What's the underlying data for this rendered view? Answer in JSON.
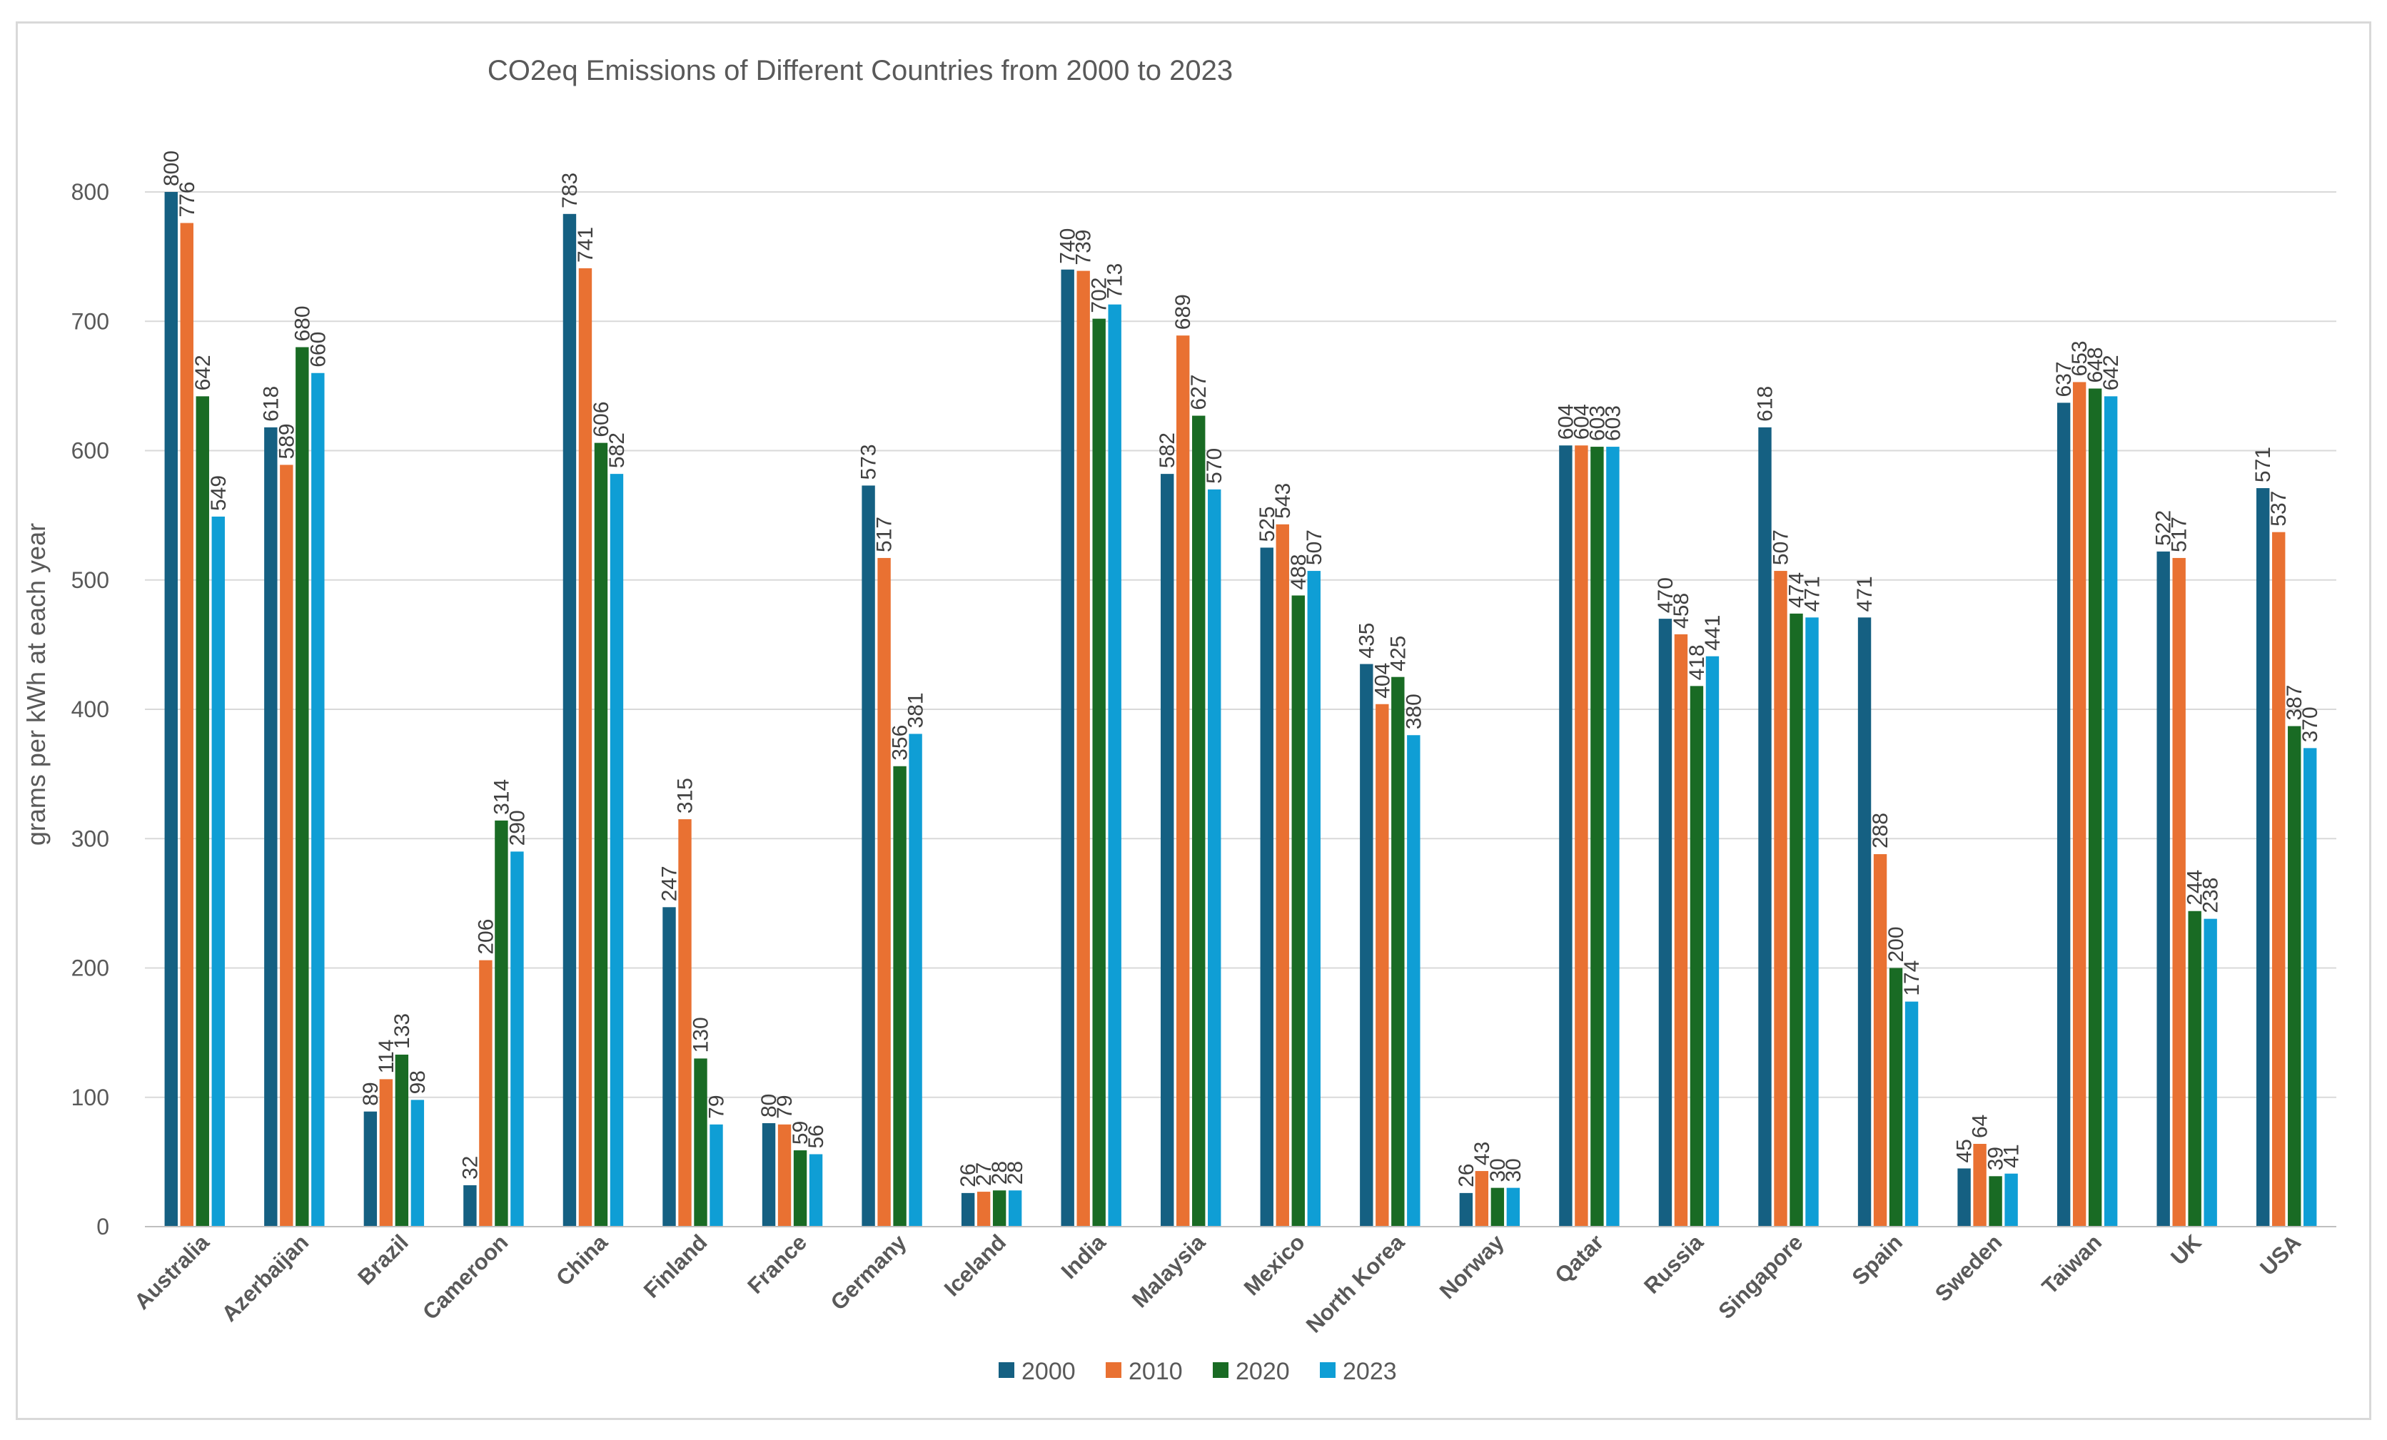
{
  "chart_data": {
    "type": "bar",
    "title": "CO2eq Emissions of Different Countries from 2000 to 2023",
    "xlabel": "",
    "ylabel": "grams per kWh at each year",
    "ylim": [
      0,
      800
    ],
    "yticks": [
      0,
      100,
      200,
      300,
      400,
      500,
      600,
      700,
      800
    ],
    "grid": true,
    "legend_position": "bottom",
    "categories": [
      "Australia",
      "Azerbaijan",
      "Brazil",
      "Cameroon",
      "China",
      "Finland",
      "France",
      "Germany",
      "Iceland",
      "India",
      "Malaysia",
      "Mexico",
      "North Korea",
      "Norway",
      "Qatar",
      "Russia",
      "Singapore",
      "Spain",
      "Sweden",
      "Taiwan",
      "UK",
      "USA"
    ],
    "series": [
      {
        "name": "2000",
        "color": "#156082",
        "values": [
          800,
          618,
          89,
          32,
          783,
          247,
          80,
          573,
          26,
          740,
          582,
          525,
          435,
          26,
          604,
          470,
          618,
          471,
          45,
          637,
          522,
          571
        ]
      },
      {
        "name": "2010",
        "color": "#E97132",
        "values": [
          776,
          589,
          114,
          206,
          741,
          315,
          79,
          517,
          27,
          739,
          689,
          543,
          404,
          43,
          604,
          458,
          507,
          288,
          64,
          653,
          517,
          537
        ]
      },
      {
        "name": "2020",
        "color": "#196B24",
        "values": [
          642,
          680,
          133,
          314,
          606,
          130,
          59,
          356,
          28,
          702,
          627,
          488,
          425,
          30,
          603,
          418,
          474,
          200,
          39,
          648,
          244,
          387
        ]
      },
      {
        "name": "2023",
        "color": "#0F9ED5",
        "values": [
          549,
          660,
          98,
          290,
          582,
          79,
          56,
          381,
          28,
          713,
          570,
          507,
          380,
          30,
          603,
          441,
          471,
          174,
          41,
          642,
          238,
          370
        ]
      }
    ]
  }
}
